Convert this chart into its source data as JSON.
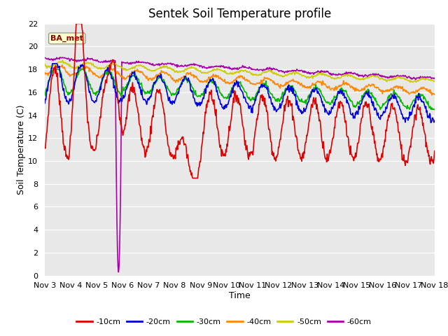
{
  "title": "Sentek Soil Temperature profile",
  "xlabel": "Time",
  "ylabel": "Soil Temperature (C)",
  "ylim": [
    0,
    22
  ],
  "yticks": [
    0,
    2,
    4,
    6,
    8,
    10,
    12,
    14,
    16,
    18,
    20,
    22
  ],
  "xlabels": [
    "Nov 3",
    "Nov 4",
    "Nov 5",
    "Nov 6",
    "Nov 7",
    "Nov 8",
    "Nov 9",
    "Nov 10",
    "Nov 11",
    "Nov 12",
    "Nov 13",
    "Nov 14",
    "Nov 15",
    "Nov 16",
    "Nov 17",
    "Nov 18"
  ],
  "legend_label": "BA_met",
  "bg_color": "#e8e8e8",
  "fig_color": "#ffffff",
  "line_colors": {
    "-10cm": "#dd0000",
    "-20cm": "#0000dd",
    "-30cm": "#00bb00",
    "-40cm": "#ff8800",
    "-50cm": "#cccc00",
    "-60cm": "#aa00aa"
  },
  "line_width": 1.2,
  "title_fontsize": 12,
  "axis_fontsize": 9,
  "tick_fontsize": 8
}
